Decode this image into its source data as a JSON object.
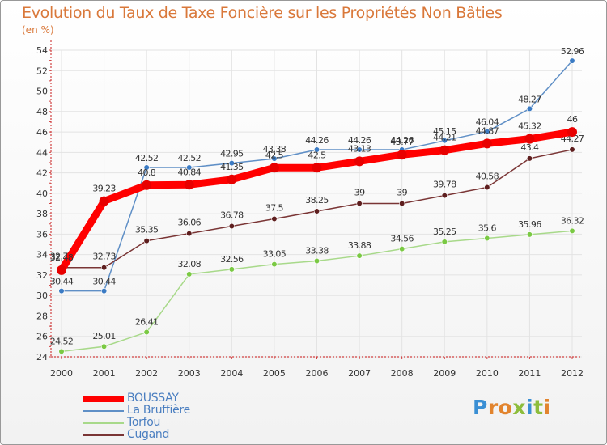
{
  "chart_data": {
    "type": "line",
    "title": "Evolution du Taux de Taxe Foncière sur les Propriétés Non Bâties",
    "unit_label": "(en %)",
    "xlabel": "",
    "ylabel": "",
    "ylim": [
      24,
      54
    ],
    "yticks": [
      24,
      26,
      28,
      30,
      32,
      34,
      36,
      38,
      40,
      42,
      44,
      46,
      48,
      50,
      52,
      54
    ],
    "categories": [
      "2000",
      "2001",
      "2002",
      "2003",
      "2004",
      "2005",
      "2006",
      "2007",
      "2008",
      "2009",
      "2010",
      "2011",
      "2012"
    ],
    "series": [
      {
        "name": "La Bruffière",
        "color": "#5f8fc6",
        "marker": "#3b7bc4",
        "values": [
          30.44,
          30.44,
          42.52,
          42.52,
          42.95,
          43.38,
          44.26,
          44.26,
          44.26,
          45.15,
          46.04,
          48.27,
          52.96
        ],
        "labels": [
          "30.44",
          "30.44",
          "42.52",
          "42.52",
          "42.95",
          "43.38",
          "44.26",
          "44.26",
          "44.26",
          "45.15",
          "46.04",
          "48.27",
          "52.96"
        ]
      },
      {
        "name": "Torfou",
        "color": "#a8d98a",
        "marker": "#7ac943",
        "values": [
          24.52,
          25.01,
          26.41,
          32.08,
          32.56,
          33.05,
          33.38,
          33.88,
          34.56,
          35.25,
          35.6,
          35.96,
          36.32
        ],
        "labels": [
          "24.52",
          "25.01",
          "26.41",
          "32.08",
          "32.56",
          "33.05",
          "33.38",
          "33.88",
          "34.56",
          "35.25",
          "35.6",
          "35.96",
          "36.32"
        ]
      },
      {
        "name": "Cugand",
        "color": "#7a3535",
        "marker": "#5e1e1e",
        "values": [
          32.73,
          32.73,
          35.35,
          36.06,
          36.78,
          37.5,
          38.25,
          39,
          39,
          39.78,
          40.58,
          43.4,
          44.27
        ],
        "labels": [
          "32.73",
          "32.73",
          "35.35",
          "36.06",
          "36.78",
          "37.5",
          "38.25",
          "39",
          "39",
          "39.78",
          "40.58",
          "43.4",
          "44.27"
        ]
      },
      {
        "name": "BOUSSAY",
        "color": "#ff0000",
        "marker": "#e80000",
        "values": [
          32.48,
          39.23,
          40.8,
          40.84,
          41.35,
          42.5,
          42.5,
          43.13,
          43.77,
          44.21,
          44.87,
          45.32,
          46
        ],
        "labels": [
          "32.48",
          "39.23",
          "40.8",
          "40.84",
          "41.35",
          "42.5",
          "42.5",
          "43.13",
          "43.77",
          "44.21",
          "44.87",
          "45.32",
          "46"
        ]
      }
    ],
    "legend": {
      "position": "bottom-left",
      "order": [
        "BOUSSAY",
        "La Bruffière",
        "Torfou",
        "Cugand"
      ]
    }
  },
  "branding": {
    "logo_text": "Proxiti"
  }
}
